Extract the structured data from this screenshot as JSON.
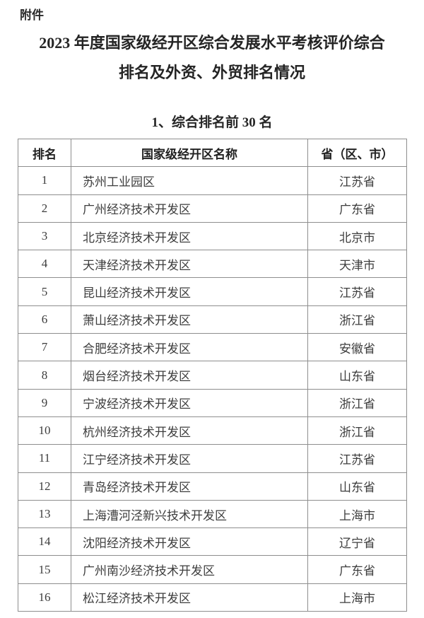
{
  "page": {
    "attachment_label": "附件",
    "title_line1": "2023 年度国家级经开区综合发展水平考核评价综合",
    "title_line2": "排名及外资、外贸排名情况",
    "section_heading": "1、综合排名前 30 名"
  },
  "table": {
    "headers": {
      "rank": "排名",
      "name": "国家级经开区名称",
      "province": "省（区、市）"
    },
    "rows": [
      {
        "rank": "1",
        "name": "苏州工业园区",
        "province": "江苏省"
      },
      {
        "rank": "2",
        "name": "广州经济技术开发区",
        "province": "广东省"
      },
      {
        "rank": "3",
        "name": "北京经济技术开发区",
        "province": "北京市"
      },
      {
        "rank": "4",
        "name": "天津经济技术开发区",
        "province": "天津市"
      },
      {
        "rank": "5",
        "name": "昆山经济技术开发区",
        "province": "江苏省"
      },
      {
        "rank": "6",
        "name": "萧山经济技术开发区",
        "province": "浙江省"
      },
      {
        "rank": "7",
        "name": "合肥经济技术开发区",
        "province": "安徽省"
      },
      {
        "rank": "8",
        "name": "烟台经济技术开发区",
        "province": "山东省"
      },
      {
        "rank": "9",
        "name": "宁波经济技术开发区",
        "province": "浙江省"
      },
      {
        "rank": "10",
        "name": "杭州经济技术开发区",
        "province": "浙江省"
      },
      {
        "rank": "11",
        "name": "江宁经济技术开发区",
        "province": "江苏省"
      },
      {
        "rank": "12",
        "name": "青岛经济技术开发区",
        "province": "山东省"
      },
      {
        "rank": "13",
        "name": "上海漕河泾新兴技术开发区",
        "province": "上海市"
      },
      {
        "rank": "14",
        "name": "沈阳经济技术开发区",
        "province": "辽宁省"
      },
      {
        "rank": "15",
        "name": "广州南沙经济技术开发区",
        "province": "广东省"
      },
      {
        "rank": "16",
        "name": "松江经济技术开发区",
        "province": "上海市"
      }
    ]
  }
}
